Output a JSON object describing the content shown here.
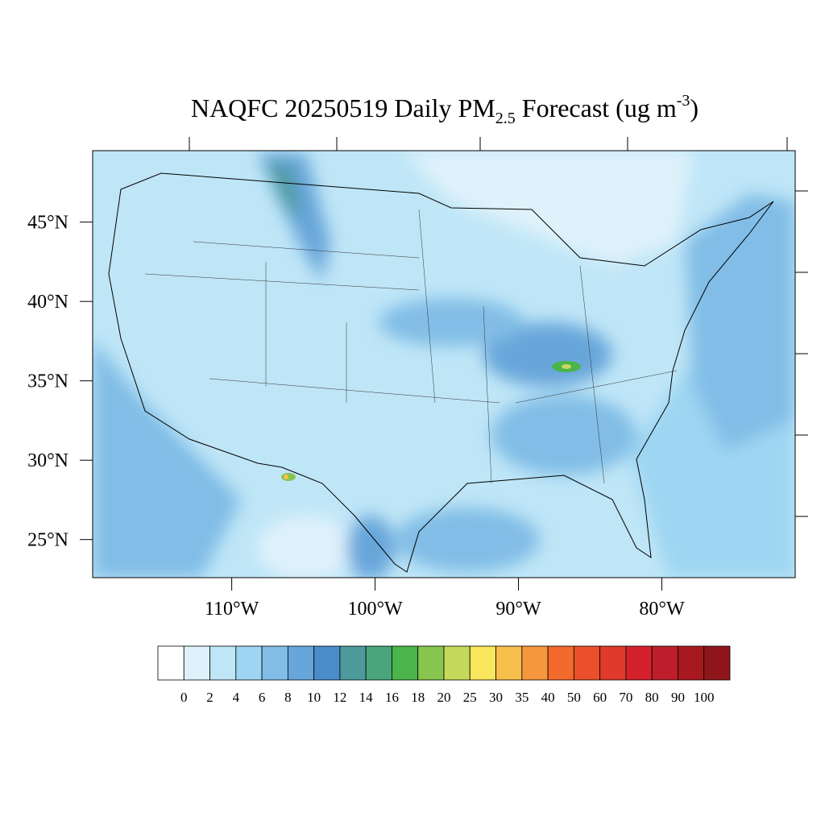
{
  "chart_data": {
    "type": "map",
    "title": [
      "NAQFC 20250519 Daily PM",
      "2.5",
      " Forecast (ug m",
      "-3",
      ")"
    ],
    "xlim": [
      -119.7,
      -70.7
    ],
    "xticks": [
      {
        "value": -110,
        "label": "110°W"
      },
      {
        "value": -100,
        "label": "100°W"
      },
      {
        "value": -90,
        "label": "90°W"
      },
      {
        "value": -80,
        "label": "80°W"
      }
    ],
    "ylim": [
      22.6,
      49.5
    ],
    "yticks": [
      {
        "value": 45,
        "label": "45°N"
      },
      {
        "value": 40,
        "label": "40°N"
      },
      {
        "value": 35,
        "label": "35°N"
      },
      {
        "value": 30,
        "label": "30°N"
      },
      {
        "value": 25,
        "label": "25°N"
      }
    ],
    "colorbar": {
      "levels": [
        0,
        2,
        4,
        6,
        8,
        10,
        12,
        14,
        16,
        18,
        20,
        25,
        30,
        35,
        40,
        50,
        60,
        70,
        80,
        90,
        100
      ],
      "colors": [
        "#ffffff",
        "#dff2fb",
        "#bfe6f7",
        "#9ed5f2",
        "#81bde6",
        "#67a6da",
        "#4b8ccb",
        "#4d9a9c",
        "#4aa57a",
        "#4bb44a",
        "#87c54e",
        "#c5d95a",
        "#f8e65c",
        "#f8bf4c",
        "#f6963d",
        "#f26a2c",
        "#e9502b",
        "#df3a2b",
        "#d3222b",
        "#bc1e2b",
        "#a8191f",
        "#8e161a"
      ]
    }
  }
}
